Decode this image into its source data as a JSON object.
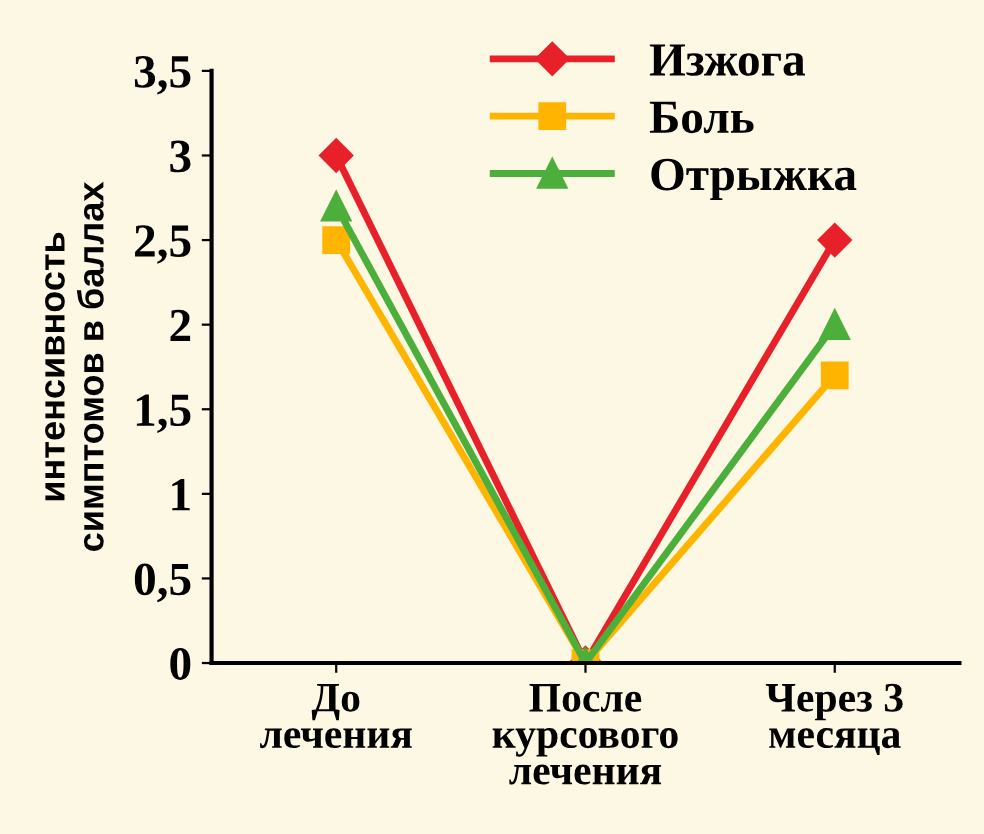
{
  "chart_data": {
    "type": "line",
    "ylabel": "интенсивность\nсимптомов в баллах",
    "categories": [
      "До\nлечения",
      "После\nкурсового\nлечения",
      "Через 3\nмесяца"
    ],
    "series": [
      {
        "name": "Изжога",
        "color": "#e8202a",
        "marker": "diamond",
        "values": [
          3,
          0,
          2.5
        ]
      },
      {
        "name": "Боль",
        "color": "#ffb400",
        "marker": "square",
        "values": [
          2.5,
          0,
          1.7
        ]
      },
      {
        "name": "Отрыжка",
        "color": "#4caf3c",
        "marker": "triangle",
        "values": [
          2.7,
          0,
          2.0
        ]
      }
    ],
    "ylim": [
      0,
      3.5
    ],
    "yticks": [
      0,
      {
        "value": 0.5,
        "label": "0,5"
      },
      1,
      {
        "value": 1.5,
        "label": "1,5"
      },
      2,
      {
        "value": 2.5,
        "label": "2,5"
      },
      3,
      {
        "value": 3.5,
        "label": "3,5"
      }
    ],
    "grid": false,
    "legend": "top right",
    "line_style": "solid"
  }
}
